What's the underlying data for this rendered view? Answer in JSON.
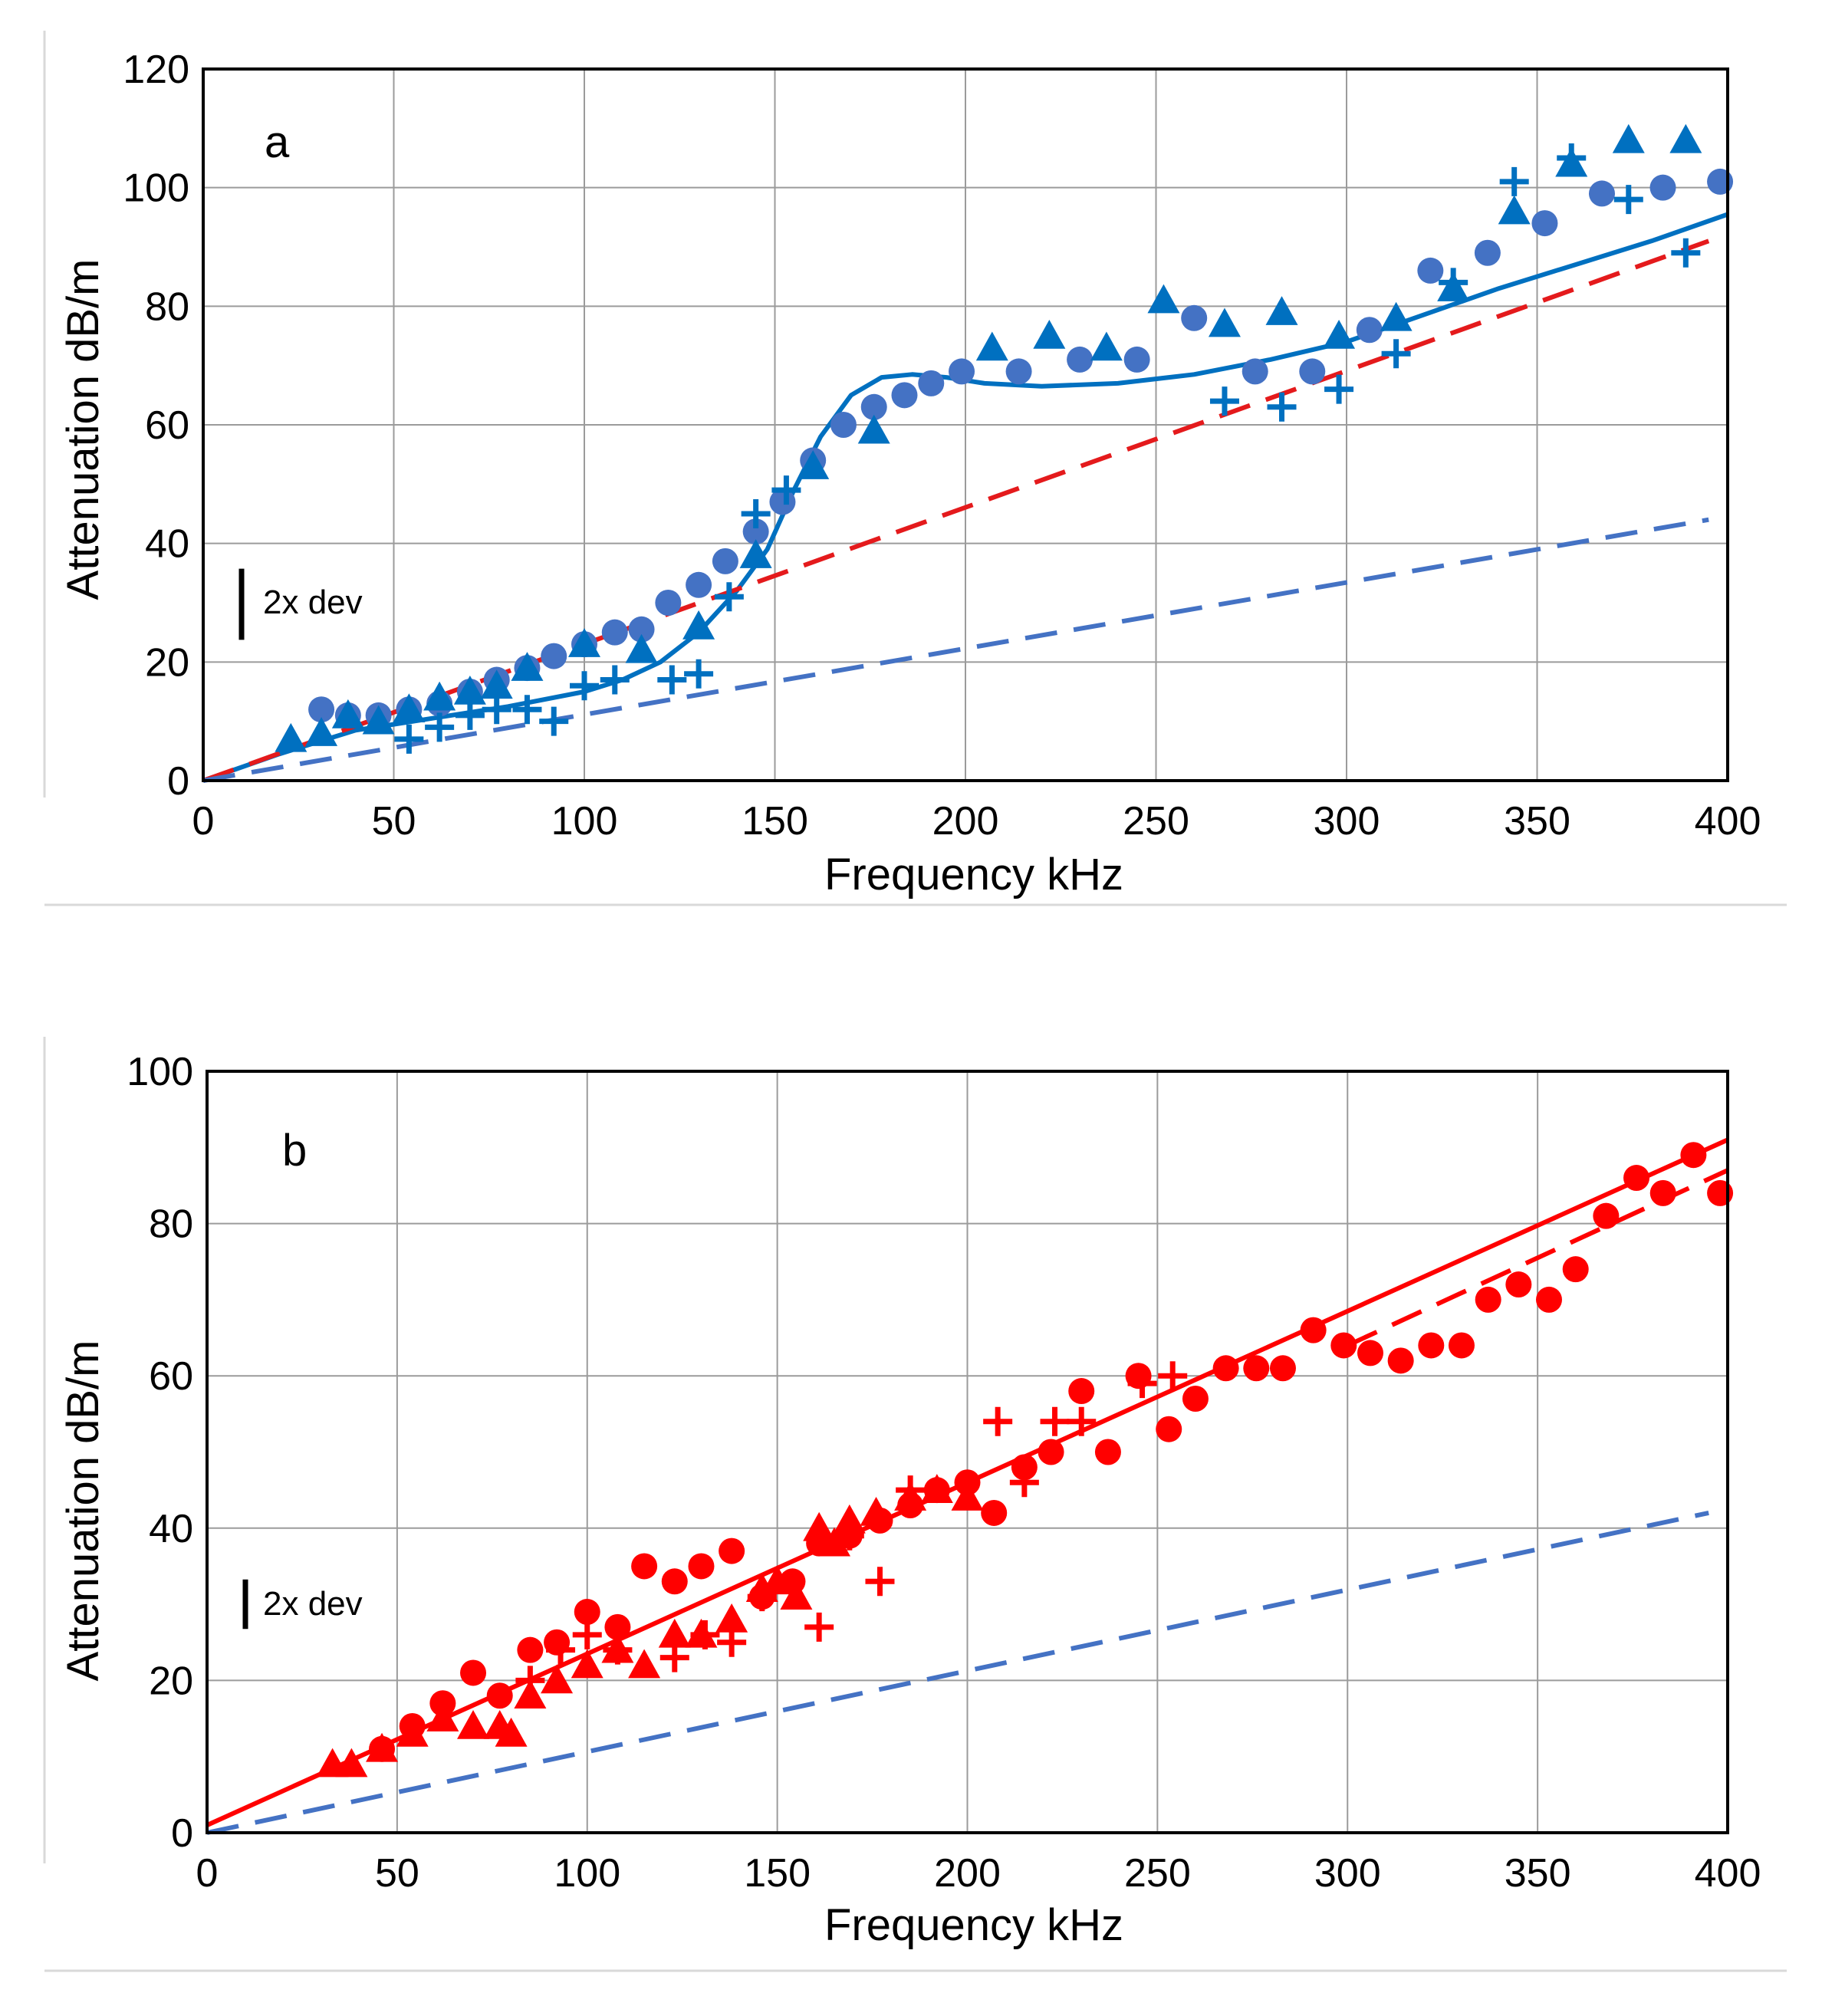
{
  "chart_data": [
    {
      "type": "scatter",
      "panel_label": "a",
      "xlabel": "Frequency  kHz",
      "ylabel": "Attenuation  dB/m",
      "xlim": [
        0,
        400
      ],
      "ylim": [
        0,
        120
      ],
      "x_ticks": [
        "0",
        "50",
        "100",
        "150",
        "200",
        "250",
        "300",
        "350",
        "400"
      ],
      "y_ticks": [
        "0",
        "20",
        "40",
        "60",
        "80",
        "100",
        "120"
      ],
      "grid": true,
      "annotation": "2x dev",
      "errorbar_span": 12,
      "series": [
        {
          "name": "circles",
          "marker": "circle",
          "color": "#4472c4",
          "points": [
            [
              31,
              12
            ],
            [
              38,
              11
            ],
            [
              46,
              11
            ],
            [
              54,
              12
            ],
            [
              62,
              13
            ],
            [
              70,
              15
            ],
            [
              77,
              17
            ],
            [
              85,
              19
            ],
            [
              92,
              21
            ],
            [
              100,
              23
            ],
            [
              108,
              25
            ],
            [
              115,
              25.5
            ],
            [
              122,
              30
            ],
            [
              130,
              33
            ],
            [
              137,
              37
            ],
            [
              145,
              42
            ],
            [
              152,
              47
            ],
            [
              160,
              54
            ],
            [
              168,
              60
            ],
            [
              176,
              63
            ],
            [
              184,
              65
            ],
            [
              191,
              67
            ],
            [
              199,
              69
            ],
            [
              214,
              69
            ],
            [
              230,
              71
            ],
            [
              245,
              71
            ],
            [
              260,
              78
            ],
            [
              276,
              69
            ],
            [
              291,
              69
            ],
            [
              306,
              76
            ],
            [
              322,
              86
            ],
            [
              337,
              89
            ],
            [
              352,
              94
            ],
            [
              367,
              99
            ],
            [
              383,
              100
            ],
            [
              398,
              101
            ]
          ]
        },
        {
          "name": "triangles",
          "marker": "triangle",
          "color": "#0070c0",
          "points": [
            [
              23,
              7
            ],
            [
              31,
              8
            ],
            [
              38,
              11
            ],
            [
              46,
              10
            ],
            [
              54,
              12
            ],
            [
              62,
              14
            ],
            [
              70,
              15
            ],
            [
              77,
              16
            ],
            [
              85,
              19
            ],
            [
              100,
              23
            ],
            [
              115,
              22
            ],
            [
              130,
              26
            ],
            [
              145,
              38
            ],
            [
              160,
              53
            ],
            [
              176,
              59
            ],
            [
              207,
              73
            ],
            [
              222,
              75
            ],
            [
              237,
              73
            ],
            [
              252,
              81
            ],
            [
              268,
              77
            ],
            [
              283,
              79
            ],
            [
              298,
              75
            ],
            [
              313,
              78
            ],
            [
              328,
              83
            ],
            [
              344,
              96
            ],
            [
              359,
              104
            ],
            [
              374,
              108
            ],
            [
              389,
              108
            ]
          ]
        },
        {
          "name": "plus",
          "marker": "plus",
          "color": "#0070c0",
          "points": [
            [
              54,
              7
            ],
            [
              62,
              9
            ],
            [
              70,
              11
            ],
            [
              77,
              12
            ],
            [
              85,
              12
            ],
            [
              92,
              10
            ],
            [
              100,
              16
            ],
            [
              108,
              17
            ],
            [
              123,
              17
            ],
            [
              130,
              18
            ],
            [
              138,
              31
            ],
            [
              145,
              45
            ],
            [
              153,
              49
            ],
            [
              268,
              64
            ],
            [
              283,
              63
            ],
            [
              298,
              66
            ],
            [
              313,
              72
            ],
            [
              328,
              84
            ],
            [
              344,
              101
            ],
            [
              359,
              105
            ],
            [
              374,
              98
            ],
            [
              389,
              89
            ]
          ]
        }
      ],
      "lines": [
        {
          "name": "model-solid",
          "style": "solid",
          "color": "#0070c0",
          "points": [
            [
              0,
              0
            ],
            [
              20,
              4.5
            ],
            [
              40,
              8.5
            ],
            [
              60,
              10.5
            ],
            [
              80,
              12.5
            ],
            [
              100,
              15
            ],
            [
              110,
              17
            ],
            [
              120,
              20
            ],
            [
              130,
              25
            ],
            [
              140,
              32
            ],
            [
              148,
              39
            ],
            [
              155,
              49
            ],
            [
              162,
              58
            ],
            [
              170,
              65
            ],
            [
              178,
              68
            ],
            [
              186,
              68.5
            ],
            [
              195,
              68
            ],
            [
              205,
              67
            ],
            [
              220,
              66.5
            ],
            [
              240,
              67
            ],
            [
              260,
              68.5
            ],
            [
              280,
              71
            ],
            [
              300,
              74
            ],
            [
              320,
              78.5
            ],
            [
              340,
              83
            ],
            [
              360,
              87
            ],
            [
              380,
              91
            ],
            [
              400,
              95.5
            ]
          ]
        },
        {
          "name": "red-dashed",
          "style": "dashed",
          "color": "#e41a1c",
          "points": [
            [
              0,
              0
            ],
            [
              395,
              91
            ]
          ]
        },
        {
          "name": "blue-dashed",
          "style": "dashed",
          "color": "#4472c4",
          "points": [
            [
              0,
              0
            ],
            [
              395,
              44
            ]
          ]
        }
      ]
    },
    {
      "type": "scatter",
      "panel_label": "b",
      "xlabel": "Frequency  kHz",
      "ylabel": "Attenuation  dB/m",
      "xlim": [
        0,
        400
      ],
      "ylim": [
        0,
        100
      ],
      "x_ticks": [
        "0",
        "50",
        "100",
        "150",
        "200",
        "250",
        "300",
        "350",
        "400"
      ],
      "y_ticks": [
        "0",
        "20",
        "40",
        "60",
        "80",
        "100"
      ],
      "grid": true,
      "annotation": "2x dev",
      "errorbar_span": 6.5,
      "series": [
        {
          "name": "circles",
          "marker": "circle",
          "color": "#ff0000",
          "points": [
            [
              46,
              11
            ],
            [
              54,
              14
            ],
            [
              62,
              17
            ],
            [
              70,
              21
            ],
            [
              77,
              18
            ],
            [
              85,
              24
            ],
            [
              92,
              25
            ],
            [
              100,
              29
            ],
            [
              108,
              27
            ],
            [
              115,
              35
            ],
            [
              123,
              33
            ],
            [
              130,
              35
            ],
            [
              138,
              37
            ],
            [
              146,
              31
            ],
            [
              154,
              33
            ],
            [
              161,
              38
            ],
            [
              169,
              39
            ],
            [
              177,
              41
            ],
            [
              185,
              43
            ],
            [
              192,
              45
            ],
            [
              200,
              46
            ],
            [
              207,
              42
            ],
            [
              215,
              48
            ],
            [
              222,
              50
            ],
            [
              230,
              58
            ],
            [
              237,
              50
            ],
            [
              245,
              60
            ],
            [
              253,
              53
            ],
            [
              260,
              57
            ],
            [
              268,
              61
            ],
            [
              276,
              61
            ],
            [
              283,
              61
            ],
            [
              291,
              66
            ],
            [
              299,
              64
            ],
            [
              306,
              63
            ],
            [
              314,
              62
            ],
            [
              322,
              64
            ],
            [
              330,
              64
            ],
            [
              337,
              70
            ],
            [
              345,
              72
            ],
            [
              353,
              70
            ],
            [
              360,
              74
            ],
            [
              368,
              81
            ],
            [
              376,
              86
            ],
            [
              383,
              84
            ],
            [
              391,
              89
            ],
            [
              398,
              84
            ]
          ]
        },
        {
          "name": "triangles",
          "marker": "triangle",
          "color": "#ff0000",
          "points": [
            [
              33,
              9
            ],
            [
              38,
              9
            ],
            [
              46,
              11
            ],
            [
              54,
              13
            ],
            [
              62,
              15
            ],
            [
              70,
              14
            ],
            [
              77,
              14
            ],
            [
              80,
              13
            ],
            [
              85,
              18
            ],
            [
              92,
              20
            ],
            [
              100,
              22
            ],
            [
              108,
              24
            ],
            [
              115,
              22
            ],
            [
              123,
              26
            ],
            [
              130,
              26
            ],
            [
              138,
              28
            ],
            [
              146,
              32
            ],
            [
              150,
              33
            ],
            [
              155,
              31
            ],
            [
              161,
              40
            ],
            [
              165,
              38
            ],
            [
              169,
              41
            ],
            [
              176,
              42
            ],
            [
              185,
              44
            ],
            [
              192,
              45
            ],
            [
              200,
              44
            ]
          ]
        },
        {
          "name": "plus",
          "marker": "plus",
          "color": "#ff0000",
          "points": [
            [
              85,
              20
            ],
            [
              93,
              24
            ],
            [
              100,
              26
            ],
            [
              108,
              24
            ],
            [
              123,
              23
            ],
            [
              131,
              26
            ],
            [
              138,
              25
            ],
            [
              146,
              31
            ],
            [
              161,
              27
            ],
            [
              169,
              39
            ],
            [
              177,
              33
            ],
            [
              185,
              45
            ],
            [
              208,
              54
            ],
            [
              215,
              46
            ],
            [
              223,
              54
            ],
            [
              230,
              54
            ],
            [
              246,
              59
            ],
            [
              254,
              60
            ]
          ]
        }
      ],
      "lines": [
        {
          "name": "red-solid",
          "style": "solid",
          "color": "#ff0000",
          "points": [
            [
              0,
              1
            ],
            [
              400,
              91
            ]
          ]
        },
        {
          "name": "red-dashed",
          "style": "dashed",
          "color": "#ff0000",
          "points": [
            [
              300,
              64
            ],
            [
              400,
              87
            ]
          ]
        },
        {
          "name": "blue-dashed",
          "style": "dashed",
          "color": "#4472c4",
          "points": [
            [
              0,
              0
            ],
            [
              395,
              42
            ]
          ]
        }
      ]
    }
  ]
}
